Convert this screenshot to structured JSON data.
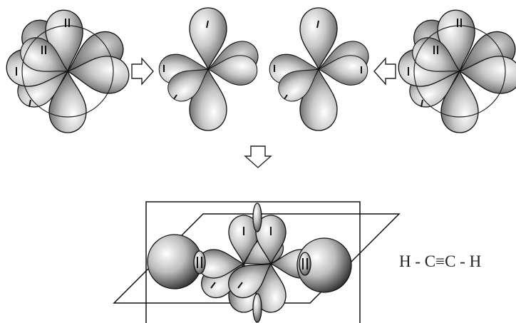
{
  "formula": "H - C≡C - H"
}
